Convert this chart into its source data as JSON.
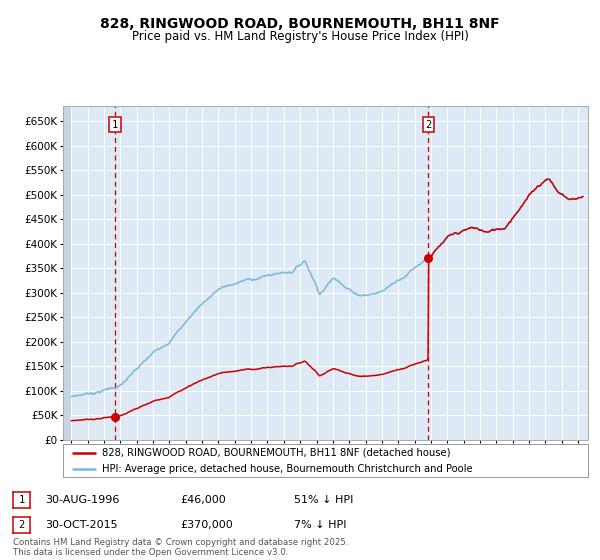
{
  "title_line1": "828, RINGWOOD ROAD, BOURNEMOUTH, BH11 8NF",
  "title_line2": "Price paid vs. HM Land Registry's House Price Index (HPI)",
  "legend_label1": "828, RINGWOOD ROAD, BOURNEMOUTH, BH11 8NF (detached house)",
  "legend_label2": "HPI: Average price, detached house, Bournemouth Christchurch and Poole",
  "annotation1_date": "30-AUG-1996",
  "annotation1_price": "£46,000",
  "annotation1_hpi": "51% ↓ HPI",
  "annotation2_date": "30-OCT-2015",
  "annotation2_price": "£370,000",
  "annotation2_hpi": "7% ↓ HPI",
  "footer": "Contains HM Land Registry data © Crown copyright and database right 2025.\nThis data is licensed under the Open Government Licence v3.0.",
  "sale1_year": 1996.667,
  "sale1_price": 46000,
  "sale2_year": 2015.833,
  "sale2_price": 370000,
  "hpi_color": "#7bb8d8",
  "price_color": "#cc0000",
  "plot_bg": "#ddeaf5",
  "grid_color": "#ffffff",
  "ylim_max": 680000,
  "xmin": 1993.5,
  "xmax": 2025.6,
  "yticks": [
    0,
    50000,
    100000,
    150000,
    200000,
    250000,
    300000,
    350000,
    400000,
    450000,
    500000,
    550000,
    600000,
    650000
  ]
}
